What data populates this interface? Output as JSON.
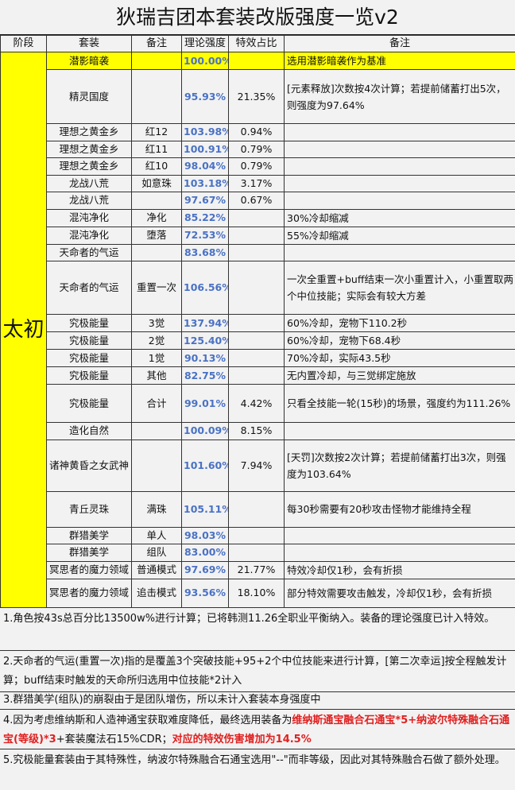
{
  "title": "狄瑞吉团本套装改版强度一览v2",
  "headers": [
    "阶段",
    "套装",
    "备注",
    "理论强度",
    "特效占比",
    "备注"
  ],
  "stage": "太初",
  "colors": {
    "highlight": "#ffff00",
    "stage_bg": "#9fc1e5",
    "value": "#4a72c4",
    "emphasis": "#e02020"
  },
  "rows": [
    {
      "set": "潜影暗袭",
      "remark": "",
      "strength": "100.00%",
      "effect": "",
      "note": "选用潜影暗袭作为基准",
      "highlight": true
    },
    {
      "set": "精灵国度",
      "remark": "",
      "strength": "95.93%",
      "effect": "21.35%",
      "note": "[元素释放]次数按4次计算；若提前储蓄打出5次，则强度为97.64%"
    },
    {
      "set": "理想之黄金乡",
      "remark": "红12",
      "strength": "103.98%",
      "effect": "0.94%",
      "note": ""
    },
    {
      "set": "理想之黄金乡",
      "remark": "红11",
      "strength": "100.91%",
      "effect": "0.79%",
      "note": ""
    },
    {
      "set": "理想之黄金乡",
      "remark": "红10",
      "strength": "98.04%",
      "effect": "0.79%",
      "note": ""
    },
    {
      "set": "龙战八荒",
      "remark": "如意珠",
      "strength": "103.18%",
      "effect": "3.17%",
      "note": ""
    },
    {
      "set": "龙战八荒",
      "remark": "",
      "strength": "97.67%",
      "effect": "0.67%",
      "note": ""
    },
    {
      "set": "混沌净化",
      "remark": "净化",
      "strength": "85.22%",
      "effect": "",
      "note": "30%冷却缩减"
    },
    {
      "set": "混沌净化",
      "remark": "堕落",
      "strength": "72.53%",
      "effect": "",
      "note": "55%冷却缩减"
    },
    {
      "set": "天命者的气运",
      "remark": "",
      "strength": "83.68%",
      "effect": "",
      "note": ""
    },
    {
      "set": "天命者的气运",
      "remark": "重置一次",
      "strength": "106.56%",
      "effect": "",
      "note": "一次全重置+buff结束一次小重置计入，小重置取两个中位技能；实际会有较大方差"
    },
    {
      "set": "究极能量",
      "remark": "3觉",
      "strength": "137.94%",
      "effect": "",
      "note": "60%冷却，宠物下110.2秒"
    },
    {
      "set": "究极能量",
      "remark": "2觉",
      "strength": "125.40%",
      "effect": "",
      "note": "60%冷却，宠物下68.4秒"
    },
    {
      "set": "究极能量",
      "remark": "1觉",
      "strength": "90.13%",
      "effect": "",
      "note": "70%冷却，实际43.5秒"
    },
    {
      "set": "究极能量",
      "remark": "其他",
      "strength": "82.75%",
      "effect": "",
      "note": "无内置冷却，与三觉绑定施放"
    },
    {
      "set": "究极能量",
      "remark": "合计",
      "strength": "99.01%",
      "effect": "4.42%",
      "note": "只看全技能一轮(15秒)的场景，强度约为111.26%"
    },
    {
      "set": "造化自然",
      "remark": "",
      "strength": "100.09%",
      "effect": "8.15%",
      "note": ""
    },
    {
      "set": "诸神黄昏之女武神",
      "remark": "",
      "strength": "101.60%",
      "effect": "7.94%",
      "note": "[天罚]次数按2次计算；若提前储蓄打出3次，则强度为103.64%"
    },
    {
      "set": "青丘灵珠",
      "remark": "满珠",
      "strength": "105.11%",
      "effect": "",
      "note": "每30秒需要有20秒攻击怪物才能维持全程"
    },
    {
      "set": "群猎美学",
      "remark": "单人",
      "strength": "98.03%",
      "effect": "",
      "note": ""
    },
    {
      "set": "群猎美学",
      "remark": "组队",
      "strength": "83.00%",
      "effect": "",
      "note": ""
    },
    {
      "set": "冥思者的魔力领域",
      "remark": "普通模式",
      "strength": "97.69%",
      "effect": "21.77%",
      "note": "特效冷却仅1秒，会有折损"
    },
    {
      "set": "冥思者的魔力领域",
      "remark": "追击模式",
      "strength": "93.56%",
      "effect": "18.10%",
      "note": "部分特效需要攻击触发，冷却仅1秒，会有折损"
    }
  ],
  "notes": {
    "n1": "1.角色按43s总百分比13500w%进行计算；已将韩测11.26全职业平衡纳入。装备的理论强度已计入特效。",
    "n2": "2.天命者的气运(重置一次)指的是覆盖3个突破技能+95+2个中位技能来进行计算，[第二次幸运]按全程触发计算；buff结束时触发的天命所归选用中位技能*2计入",
    "n3": "3.群猎美学(组队)的崩裂由于是团队增伤，所以未计入套装本身强度中",
    "n4a": "4.因为考虑维纳斯和人造神通宝获取难度降低，最终选用装备为",
    "n4b": "维纳斯通宝融合石通宝*5+纳波尔特殊融合石通宝(等级)*3",
    "n4c": "+套装魔法石15%CDR；",
    "n4d": "对应的特效伤害增加为14.5%",
    "n5": "5.究极能量套装由于其特殊性，纳波尔特殊融合石通宝选用\"--\"而非等级，因此对其特殊融合石做了额外处理。"
  }
}
